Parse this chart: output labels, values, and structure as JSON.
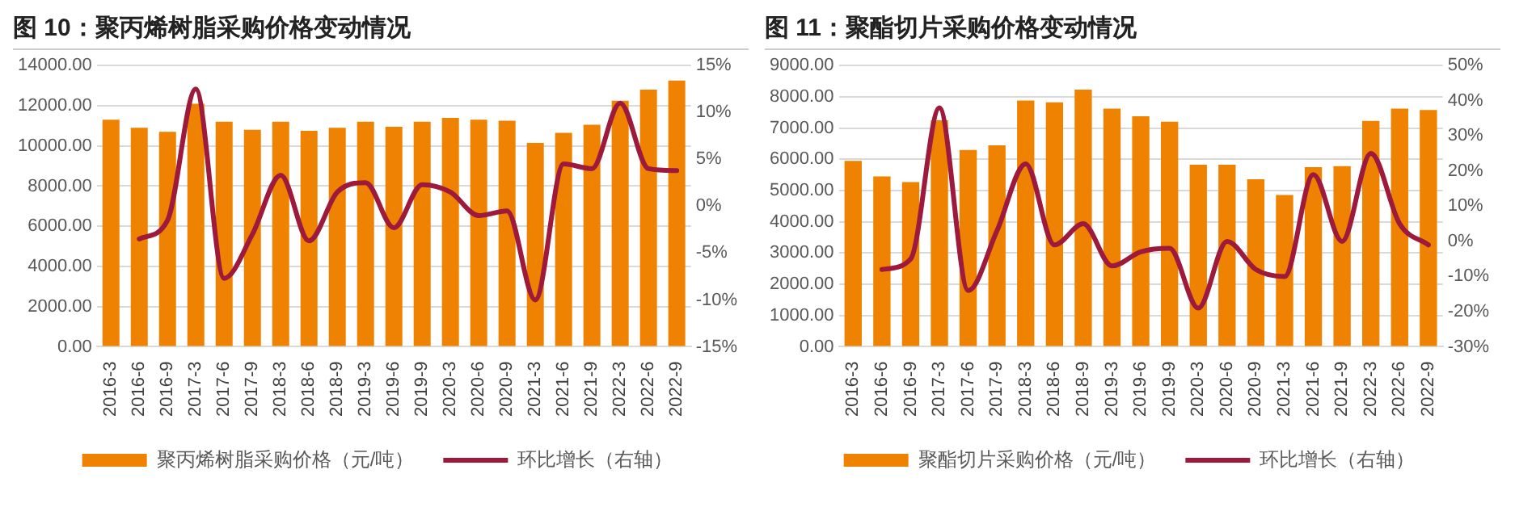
{
  "chart_data": [
    {
      "type": "bar",
      "title": "图 10：聚丙烯树脂采购价格变动情况",
      "categories": [
        "2016-3",
        "2016-6",
        "2016-9",
        "2017-3",
        "2017-6",
        "2017-9",
        "2018-3",
        "2018-6",
        "2018-9",
        "2019-3",
        "2019-6",
        "2019-9",
        "2020-3",
        "2020-6",
        "2020-9",
        "2021-3",
        "2021-6",
        "2021-9",
        "2022-3",
        "2022-6",
        "2022-9"
      ],
      "series": [
        {
          "name": "聚丙烯树脂采购价格（元/吨）",
          "color": "#ef8200",
          "values": [
            11300,
            10900,
            10700,
            12100,
            11200,
            10800,
            11200,
            10750,
            10900,
            11200,
            10950,
            11200,
            11400,
            11300,
            11250,
            10150,
            10650,
            11050,
            12250,
            12800,
            13250
          ]
        },
        {
          "name": "环比增长（右轴）",
          "type": "line",
          "axis": "y2",
          "color": "#9e1a3c",
          "values": [
            null,
            -3.5,
            -1.5,
            12.5,
            -7.7,
            -3,
            3.3,
            -3.7,
            1.5,
            2.5,
            -2.3,
            2.3,
            1.5,
            -1,
            -0.5,
            -10,
            4.5,
            4,
            11,
            4,
            3.8
          ]
        }
      ],
      "ylim": [
        0,
        14000
      ],
      "yticks": [
        {
          "value": 0,
          "label": "0.00"
        },
        {
          "value": 2000,
          "label": "2000.00"
        },
        {
          "value": 4000,
          "label": "4000.00"
        },
        {
          "value": 6000,
          "label": "6000.00"
        },
        {
          "value": 8000,
          "label": "8000.00"
        },
        {
          "value": 10000,
          "label": "10000.00"
        },
        {
          "value": 12000,
          "label": "12000.00"
        },
        {
          "value": 14000,
          "label": "14000.00"
        }
      ],
      "y2lim": [
        -15,
        15
      ],
      "y2ticks": [
        {
          "value": -15,
          "label": "-15%"
        },
        {
          "value": -10,
          "label": "-10%"
        },
        {
          "value": -5,
          "label": "-5%"
        },
        {
          "value": 0,
          "label": "0%"
        },
        {
          "value": 5,
          "label": "5%"
        },
        {
          "value": 10,
          "label": "10%"
        },
        {
          "value": 15,
          "label": "15%"
        }
      ],
      "grid": "y",
      "legend": "bottom",
      "marker": "none"
    },
    {
      "type": "bar",
      "title": "图 11：聚酯切片采购价格变动情况",
      "categories": [
        "2016-3",
        "2016-6",
        "2016-9",
        "2017-3",
        "2017-6",
        "2017-9",
        "2018-3",
        "2018-6",
        "2018-9",
        "2019-3",
        "2019-6",
        "2019-9",
        "2020-3",
        "2020-6",
        "2020-9",
        "2021-3",
        "2021-6",
        "2021-9",
        "2022-3",
        "2022-6",
        "2022-9"
      ],
      "series": [
        {
          "name": "聚酯切片采购价格（元/吨）",
          "color": "#ef8200",
          "values": [
            5950,
            5450,
            5270,
            7250,
            6300,
            6450,
            7880,
            7820,
            8230,
            7620,
            7380,
            7200,
            5830,
            5830,
            5360,
            4860,
            5750,
            5780,
            7230,
            7620,
            7580
          ]
        },
        {
          "name": "环比增长（右轴）",
          "type": "line",
          "axis": "y2",
          "color": "#9e1a3c",
          "values": [
            null,
            -8,
            -5,
            38,
            -14,
            3,
            22,
            -1,
            5,
            -7,
            -3,
            -2,
            -19,
            0,
            -8,
            -10,
            19,
            0,
            25,
            5,
            -1
          ]
        }
      ],
      "ylim": [
        0,
        9000
      ],
      "yticks": [
        {
          "value": 0,
          "label": "0.00"
        },
        {
          "value": 1000,
          "label": "1000.00"
        },
        {
          "value": 2000,
          "label": "2000.00"
        },
        {
          "value": 3000,
          "label": "3000.00"
        },
        {
          "value": 4000,
          "label": "4000.00"
        },
        {
          "value": 5000,
          "label": "5000.00"
        },
        {
          "value": 6000,
          "label": "6000.00"
        },
        {
          "value": 7000,
          "label": "7000.00"
        },
        {
          "value": 8000,
          "label": "8000.00"
        },
        {
          "value": 9000,
          "label": "9000.00"
        }
      ],
      "y2lim": [
        -30,
        50
      ],
      "y2ticks": [
        {
          "value": -30,
          "label": "-30%"
        },
        {
          "value": -20,
          "label": "-20%"
        },
        {
          "value": -10,
          "label": "-10%"
        },
        {
          "value": 0,
          "label": "0%"
        },
        {
          "value": 10,
          "label": "10%"
        },
        {
          "value": 20,
          "label": "20%"
        },
        {
          "value": 30,
          "label": "30%"
        },
        {
          "value": 40,
          "label": "40%"
        },
        {
          "value": 50,
          "label": "50%"
        }
      ],
      "grid": "y",
      "legend": "bottom",
      "marker": "none"
    }
  ]
}
